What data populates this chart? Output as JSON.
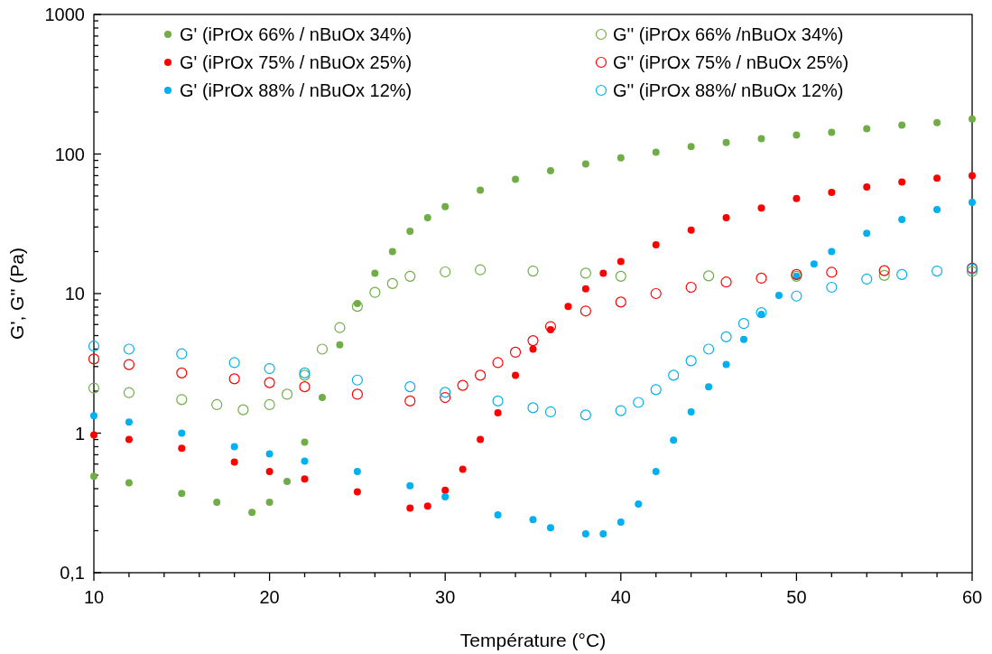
{
  "chart_data": {
    "type": "scatter",
    "xlabel": "Température (°C)",
    "ylabel": "G', G'' (Pa)",
    "log": "y",
    "xlim": [
      10,
      60
    ],
    "ylim": [
      0.1,
      1000
    ],
    "xticks": [
      10,
      {
        "value": 12,
        "label": null
      },
      {
        "value": 14,
        "label": null
      },
      {
        "value": 16,
        "label": null
      },
      {
        "value": 18,
        "label": null
      },
      20,
      {
        "value": 22,
        "label": null
      },
      {
        "value": 24,
        "label": null
      },
      {
        "value": 26,
        "label": null
      },
      {
        "value": 28,
        "label": null
      },
      30,
      {
        "value": 32,
        "label": null
      },
      {
        "value": 34,
        "label": null
      },
      {
        "value": 36,
        "label": null
      },
      {
        "value": 38,
        "label": null
      },
      40,
      {
        "value": 42,
        "label": null
      },
      {
        "value": 44,
        "label": null
      },
      {
        "value": 46,
        "label": null
      },
      {
        "value": 48,
        "label": null
      },
      50,
      {
        "value": 52,
        "label": null
      },
      {
        "value": 54,
        "label": null
      },
      {
        "value": 56,
        "label": null
      },
      {
        "value": 58,
        "label": null
      },
      60
    ],
    "yticks": [
      {
        "value": 0.1,
        "label": "0,1"
      },
      {
        "value": 0.2,
        "label": null
      },
      {
        "value": 0.3,
        "label": null
      },
      {
        "value": 0.4,
        "label": null
      },
      {
        "value": 0.5,
        "label": null
      },
      {
        "value": 0.6,
        "label": null
      },
      {
        "value": 0.7,
        "label": null
      },
      {
        "value": 0.8,
        "label": null
      },
      {
        "value": 0.9,
        "label": null
      },
      1,
      {
        "value": 2,
        "label": null
      },
      {
        "value": 3,
        "label": null
      },
      {
        "value": 4,
        "label": null
      },
      {
        "value": 5,
        "label": null
      },
      {
        "value": 6,
        "label": null
      },
      {
        "value": 7,
        "label": null
      },
      {
        "value": 8,
        "label": null
      },
      {
        "value": 9,
        "label": null
      },
      10,
      {
        "value": 20,
        "label": null
      },
      {
        "value": 30,
        "label": null
      },
      {
        "value": 40,
        "label": null
      },
      {
        "value": 50,
        "label": null
      },
      {
        "value": 60,
        "label": null
      },
      {
        "value": 70,
        "label": null
      },
      {
        "value": 80,
        "label": null
      },
      {
        "value": 90,
        "label": null
      },
      100,
      {
        "value": 200,
        "label": null
      },
      {
        "value": 300,
        "label": null
      },
      {
        "value": 400,
        "label": null
      },
      {
        "value": 500,
        "label": null
      },
      {
        "value": 600,
        "label": null
      },
      {
        "value": 700,
        "label": null
      },
      {
        "value": 800,
        "label": null
      },
      {
        "value": 900,
        "label": null
      },
      1000
    ],
    "grid": false,
    "legend": "top",
    "series": [
      {
        "name": "G' (iPrOx 66% / nBuOx 34%)",
        "color": "#70ad47",
        "marker": "circle",
        "x": [
          10,
          12,
          15,
          17,
          19,
          20,
          21,
          22,
          23,
          24,
          25,
          26,
          27,
          28,
          29,
          30,
          32,
          34,
          36,
          38,
          40,
          42,
          44,
          46,
          48,
          50,
          52,
          54,
          56,
          58,
          60
        ],
        "values": [
          0.49,
          0.44,
          0.37,
          0.32,
          0.27,
          0.32,
          0.45,
          0.86,
          1.8,
          4.3,
          8.5,
          14,
          20,
          28,
          35,
          42,
          55,
          66,
          76,
          85,
          94,
          103,
          113,
          121,
          129,
          137,
          143,
          152,
          161,
          168,
          178
        ]
      },
      {
        "name": "G' (iPrOx 75% / nBuOx 25%)",
        "color": "#ff0000",
        "marker": "circle",
        "x": [
          10,
          12,
          15,
          18,
          20,
          22,
          25,
          28,
          29,
          30,
          31,
          32,
          33,
          34,
          35,
          36,
          37,
          38,
          39,
          40,
          42,
          44,
          46,
          48,
          50,
          52,
          54,
          56,
          58,
          60
        ],
        "values": [
          0.97,
          0.9,
          0.78,
          0.62,
          0.53,
          0.47,
          0.38,
          0.29,
          0.3,
          0.39,
          0.55,
          0.9,
          1.4,
          2.6,
          4,
          5.5,
          8.1,
          10.8,
          14,
          17,
          22.4,
          28.5,
          35,
          41,
          48,
          53,
          58,
          63,
          67,
          70
        ]
      },
      {
        "name": "G' (iPrOx 88% / nBuOx 12%)",
        "color": "#00b0f0",
        "marker": "circle",
        "x": [
          10,
          12,
          15,
          18,
          20,
          22,
          25,
          28,
          30,
          33,
          35,
          36,
          38,
          39,
          40,
          41,
          42,
          43,
          44,
          45,
          46,
          47,
          48,
          49,
          50,
          51,
          52,
          54,
          56,
          58,
          60
        ],
        "values": [
          1.33,
          1.2,
          1,
          0.8,
          0.71,
          0.63,
          0.53,
          0.42,
          0.35,
          0.26,
          0.24,
          0.21,
          0.19,
          0.19,
          0.23,
          0.31,
          0.53,
          0.89,
          1.42,
          2.15,
          3.1,
          4.7,
          7.1,
          9.7,
          13.3,
          16.3,
          20,
          27,
          34,
          40,
          45
        ]
      },
      {
        "name": "G'' (iPrOx 66% /nBuOx 34%)",
        "color": "#70ad47",
        "marker": "circle-open",
        "x": [
          10,
          12,
          15,
          17,
          18.5,
          20,
          21,
          22,
          23,
          24,
          25,
          26,
          27,
          28,
          30,
          32,
          35,
          38,
          40,
          45,
          50,
          55,
          60
        ],
        "values": [
          2.1,
          1.95,
          1.74,
          1.6,
          1.47,
          1.6,
          1.9,
          2.6,
          4,
          5.7,
          8.1,
          10.2,
          11.8,
          13.3,
          14.3,
          14.8,
          14.5,
          14,
          13.3,
          13.4,
          13.3,
          13.5,
          14.4
        ]
      },
      {
        "name": "G'' (iPrOx 75% / nBuOx 25%)",
        "color": "#ff0000",
        "marker": "circle-open",
        "x": [
          10,
          12,
          15,
          18,
          20,
          22,
          25,
          28,
          30,
          31,
          32,
          33,
          34,
          35,
          36,
          38,
          40,
          42,
          44,
          46,
          48,
          50,
          52,
          55,
          60
        ],
        "values": [
          3.4,
          3.1,
          2.7,
          2.45,
          2.3,
          2.15,
          1.9,
          1.7,
          1.8,
          2.2,
          2.6,
          3.2,
          3.8,
          4.6,
          5.8,
          7.5,
          8.7,
          10,
          11.1,
          12.1,
          12.9,
          13.7,
          14.2,
          14.6,
          15.2
        ]
      },
      {
        "name": "G'' (iPrOx 88%/ nBuOx 12%)",
        "color": "#00b0f0",
        "marker": "circle-open",
        "x": [
          10,
          12,
          15,
          18,
          20,
          22,
          25,
          28,
          30,
          33,
          35,
          36,
          38,
          40,
          41,
          42,
          43,
          44,
          45,
          46,
          47,
          48,
          50,
          52,
          54,
          56,
          58,
          60
        ],
        "values": [
          4.2,
          4,
          3.7,
          3.2,
          2.9,
          2.7,
          2.4,
          2.15,
          1.96,
          1.7,
          1.52,
          1.42,
          1.35,
          1.45,
          1.66,
          2.05,
          2.6,
          3.3,
          4,
          4.9,
          6.1,
          7.3,
          9.6,
          11.1,
          12.7,
          13.7,
          14.5,
          15
        ]
      }
    ]
  }
}
